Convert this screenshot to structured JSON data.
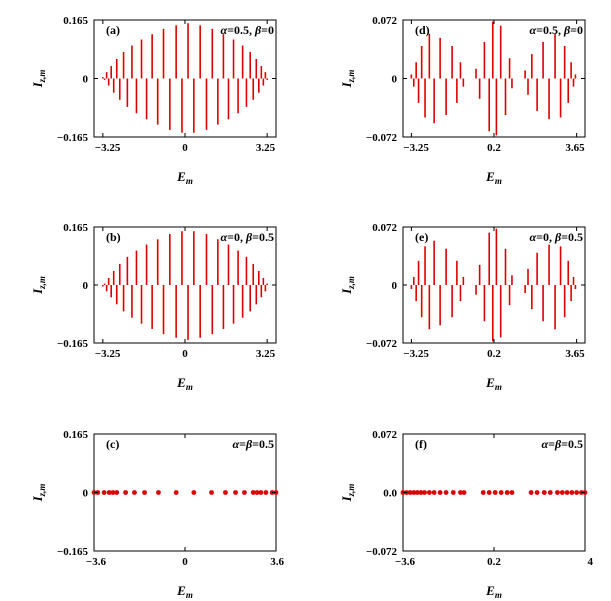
{
  "chart_data": [
    {
      "id": "a",
      "type": "bar",
      "panel_label": "(a)",
      "annotation": {
        "greek1": "α",
        "v1": "=0.5, ",
        "greek2": "β",
        "v2": "=0"
      },
      "xlabel": "E",
      "xlabel_sub": "m",
      "ylabel": "I",
      "ylabel_sub": "z,m",
      "xlim": [
        -3.6,
        3.6
      ],
      "ylim": [
        -0.165,
        0.165
      ],
      "xticks": [
        {
          "v": -3.25,
          "t": "−3.25"
        },
        {
          "v": 0,
          "t": "0"
        },
        {
          "v": 3.25,
          "t": "3.25"
        }
      ],
      "yticks": [
        {
          "v": 0.165,
          "t": "0.165"
        },
        {
          "v": 0,
          "t": "0"
        },
        {
          "v": -0.165,
          "t": "−0.165"
        }
      ],
      "points": [
        {
          "x": -3.25,
          "y": 0.004
        },
        {
          "x": -3.18,
          "y": -0.004
        },
        {
          "x": -3.1,
          "y": 0.018
        },
        {
          "x": -3.02,
          "y": -0.02
        },
        {
          "x": -2.92,
          "y": 0.035
        },
        {
          "x": -2.82,
          "y": -0.04
        },
        {
          "x": -2.7,
          "y": 0.055
        },
        {
          "x": -2.58,
          "y": -0.06
        },
        {
          "x": -2.43,
          "y": 0.075
        },
        {
          "x": -2.28,
          "y": -0.08
        },
        {
          "x": -2.1,
          "y": 0.093
        },
        {
          "x": -1.92,
          "y": -0.098
        },
        {
          "x": -1.72,
          "y": 0.11
        },
        {
          "x": -1.52,
          "y": -0.115
        },
        {
          "x": -1.3,
          "y": 0.125
        },
        {
          "x": -1.08,
          "y": -0.13
        },
        {
          "x": -0.85,
          "y": 0.14
        },
        {
          "x": -0.6,
          "y": -0.145
        },
        {
          "x": -0.35,
          "y": 0.15
        },
        {
          "x": -0.12,
          "y": -0.153
        },
        {
          "x": 0.12,
          "y": 0.156
        },
        {
          "x": 0.35,
          "y": -0.153
        },
        {
          "x": 0.6,
          "y": 0.15
        },
        {
          "x": 0.85,
          "y": -0.145
        },
        {
          "x": 1.08,
          "y": 0.14
        },
        {
          "x": 1.3,
          "y": -0.13
        },
        {
          "x": 1.52,
          "y": 0.125
        },
        {
          "x": 1.72,
          "y": -0.115
        },
        {
          "x": 1.92,
          "y": 0.11
        },
        {
          "x": 2.1,
          "y": -0.098
        },
        {
          "x": 2.28,
          "y": 0.093
        },
        {
          "x": 2.43,
          "y": -0.08
        },
        {
          "x": 2.58,
          "y": 0.075
        },
        {
          "x": 2.7,
          "y": -0.06
        },
        {
          "x": 2.82,
          "y": 0.055
        },
        {
          "x": 2.92,
          "y": -0.04
        },
        {
          "x": 3.02,
          "y": 0.035
        },
        {
          "x": 3.1,
          "y": -0.02
        },
        {
          "x": 3.18,
          "y": 0.018
        },
        {
          "x": 3.25,
          "y": -0.004
        }
      ]
    },
    {
      "id": "d",
      "type": "bar",
      "panel_label": "(d)",
      "annotation": {
        "greek1": "α",
        "v1": "=0.5, ",
        "greek2": "β",
        "v2": "=0"
      },
      "xlabel": "E",
      "xlabel_sub": "m",
      "ylabel": "I",
      "ylabel_sub": "z,m",
      "xlim": [
        -3.6,
        4.0
      ],
      "ylim": [
        -0.072,
        0.072
      ],
      "xticks": [
        {
          "v": -3.25,
          "t": "−3.25"
        },
        {
          "v": 0.2,
          "t": "0.2"
        },
        {
          "v": 3.65,
          "t": "3.65"
        }
      ],
      "yticks": [
        {
          "v": 0.072,
          "t": "0.072"
        },
        {
          "v": 0,
          "t": "0"
        },
        {
          "v": -0.072,
          "t": "−0.072"
        }
      ],
      "points": [
        {
          "x": -3.25,
          "y": 0.005
        },
        {
          "x": -3.15,
          "y": -0.01
        },
        {
          "x": -3.05,
          "y": 0.02
        },
        {
          "x": -2.95,
          "y": -0.03
        },
        {
          "x": -2.82,
          "y": 0.04
        },
        {
          "x": -2.68,
          "y": -0.048
        },
        {
          "x": -2.5,
          "y": 0.055
        },
        {
          "x": -2.3,
          "y": -0.055
        },
        {
          "x": -2.05,
          "y": 0.05
        },
        {
          "x": -1.8,
          "y": -0.045
        },
        {
          "x": -1.55,
          "y": 0.04
        },
        {
          "x": -1.35,
          "y": -0.03
        },
        {
          "x": -1.2,
          "y": 0.02
        },
        {
          "x": -1.08,
          "y": -0.01
        },
        {
          "x": -0.55,
          "y": 0.012
        },
        {
          "x": -0.4,
          "y": -0.025
        },
        {
          "x": -0.2,
          "y": 0.045
        },
        {
          "x": 0.0,
          "y": -0.065
        },
        {
          "x": 0.15,
          "y": 0.07
        },
        {
          "x": 0.3,
          "y": -0.07
        },
        {
          "x": 0.48,
          "y": 0.065
        },
        {
          "x": 0.68,
          "y": -0.045
        },
        {
          "x": 0.85,
          "y": 0.025
        },
        {
          "x": 0.95,
          "y": -0.012
        },
        {
          "x": 1.5,
          "y": 0.01
        },
        {
          "x": 1.62,
          "y": -0.02
        },
        {
          "x": 1.78,
          "y": 0.03
        },
        {
          "x": 2.0,
          "y": -0.04
        },
        {
          "x": 2.25,
          "y": 0.045
        },
        {
          "x": 2.5,
          "y": -0.05
        },
        {
          "x": 2.75,
          "y": 0.055
        },
        {
          "x": 2.98,
          "y": -0.048
        },
        {
          "x": 3.15,
          "y": 0.04
        },
        {
          "x": 3.3,
          "y": -0.03
        },
        {
          "x": 3.42,
          "y": 0.02
        },
        {
          "x": 3.52,
          "y": -0.01
        },
        {
          "x": 3.6,
          "y": 0.005
        }
      ]
    },
    {
      "id": "b",
      "type": "bar",
      "panel_label": "(b)",
      "annotation": {
        "greek1": "α",
        "v1": "=0, ",
        "greek2": "β",
        "v2": "=0.5"
      },
      "xlabel": "E",
      "xlabel_sub": "m",
      "ylabel": "I",
      "ylabel_sub": "z,m",
      "xlim": [
        -3.6,
        3.6
      ],
      "ylim": [
        -0.165,
        0.165
      ],
      "xticks": [
        {
          "v": -3.25,
          "t": "−3.25"
        },
        {
          "v": 0,
          "t": "0"
        },
        {
          "v": 3.25,
          "t": "3.25"
        }
      ],
      "yticks": [
        {
          "v": 0.165,
          "t": "0.165"
        },
        {
          "v": 0,
          "t": "0"
        },
        {
          "v": -0.165,
          "t": "−0.165"
        }
      ],
      "points": [
        {
          "x": -3.25,
          "y": -0.004
        },
        {
          "x": -3.18,
          "y": 0.004
        },
        {
          "x": -3.1,
          "y": -0.018
        },
        {
          "x": -3.02,
          "y": 0.02
        },
        {
          "x": -2.92,
          "y": -0.035
        },
        {
          "x": -2.82,
          "y": 0.04
        },
        {
          "x": -2.7,
          "y": -0.055
        },
        {
          "x": -2.58,
          "y": 0.06
        },
        {
          "x": -2.43,
          "y": -0.075
        },
        {
          "x": -2.28,
          "y": 0.08
        },
        {
          "x": -2.1,
          "y": -0.093
        },
        {
          "x": -1.92,
          "y": 0.098
        },
        {
          "x": -1.72,
          "y": -0.11
        },
        {
          "x": -1.52,
          "y": 0.115
        },
        {
          "x": -1.3,
          "y": -0.125
        },
        {
          "x": -1.08,
          "y": 0.13
        },
        {
          "x": -0.85,
          "y": -0.14
        },
        {
          "x": -0.6,
          "y": 0.145
        },
        {
          "x": -0.35,
          "y": -0.15
        },
        {
          "x": -0.12,
          "y": 0.153
        },
        {
          "x": 0.12,
          "y": -0.156
        },
        {
          "x": 0.35,
          "y": 0.153
        },
        {
          "x": 0.6,
          "y": -0.15
        },
        {
          "x": 0.85,
          "y": 0.145
        },
        {
          "x": 1.08,
          "y": -0.14
        },
        {
          "x": 1.3,
          "y": 0.13
        },
        {
          "x": 1.52,
          "y": -0.125
        },
        {
          "x": 1.72,
          "y": 0.115
        },
        {
          "x": 1.92,
          "y": -0.11
        },
        {
          "x": 2.1,
          "y": 0.098
        },
        {
          "x": 2.28,
          "y": -0.093
        },
        {
          "x": 2.43,
          "y": 0.08
        },
        {
          "x": 2.58,
          "y": -0.075
        },
        {
          "x": 2.7,
          "y": 0.06
        },
        {
          "x": 2.82,
          "y": -0.055
        },
        {
          "x": 2.92,
          "y": 0.04
        },
        {
          "x": 3.02,
          "y": -0.035
        },
        {
          "x": 3.1,
          "y": 0.02
        },
        {
          "x": 3.18,
          "y": -0.018
        },
        {
          "x": 3.25,
          "y": 0.004
        }
      ]
    },
    {
      "id": "e",
      "type": "bar",
      "panel_label": "(e)",
      "annotation": {
        "greek1": "α",
        "v1": "=0, ",
        "greek2": "β",
        "v2": "=0.5"
      },
      "xlabel": "E",
      "xlabel_sub": "m",
      "ylabel": "I",
      "ylabel_sub": "z,m",
      "xlim": [
        -3.6,
        4.0
      ],
      "ylim": [
        -0.072,
        0.072
      ],
      "xticks": [
        {
          "v": -3.25,
          "t": "−3.25"
        },
        {
          "v": 0.2,
          "t": "0.2"
        },
        {
          "v": 3.65,
          "t": "3.65"
        }
      ],
      "yticks": [
        {
          "v": 0.072,
          "t": "0.072"
        },
        {
          "v": 0,
          "t": "0"
        },
        {
          "v": -0.072,
          "t": "−0.072"
        }
      ],
      "points": [
        {
          "x": -3.25,
          "y": -0.005
        },
        {
          "x": -3.15,
          "y": 0.01
        },
        {
          "x": -3.05,
          "y": -0.02
        },
        {
          "x": -2.95,
          "y": 0.03
        },
        {
          "x": -2.82,
          "y": -0.04
        },
        {
          "x": -2.68,
          "y": 0.048
        },
        {
          "x": -2.5,
          "y": -0.055
        },
        {
          "x": -2.3,
          "y": 0.055
        },
        {
          "x": -2.05,
          "y": -0.05
        },
        {
          "x": -1.8,
          "y": 0.045
        },
        {
          "x": -1.55,
          "y": -0.04
        },
        {
          "x": -1.35,
          "y": 0.03
        },
        {
          "x": -1.2,
          "y": -0.02
        },
        {
          "x": -1.08,
          "y": 0.01
        },
        {
          "x": -0.55,
          "y": -0.012
        },
        {
          "x": -0.4,
          "y": 0.025
        },
        {
          "x": -0.2,
          "y": -0.045
        },
        {
          "x": 0.0,
          "y": 0.065
        },
        {
          "x": 0.15,
          "y": -0.07
        },
        {
          "x": 0.3,
          "y": 0.07
        },
        {
          "x": 0.48,
          "y": -0.065
        },
        {
          "x": 0.68,
          "y": 0.045
        },
        {
          "x": 0.85,
          "y": -0.025
        },
        {
          "x": 0.95,
          "y": 0.012
        },
        {
          "x": 1.5,
          "y": -0.01
        },
        {
          "x": 1.62,
          "y": 0.02
        },
        {
          "x": 1.78,
          "y": -0.03
        },
        {
          "x": 2.0,
          "y": 0.04
        },
        {
          "x": 2.25,
          "y": -0.045
        },
        {
          "x": 2.5,
          "y": 0.05
        },
        {
          "x": 2.75,
          "y": -0.055
        },
        {
          "x": 2.98,
          "y": 0.048
        },
        {
          "x": 3.15,
          "y": -0.04
        },
        {
          "x": 3.3,
          "y": 0.03
        },
        {
          "x": 3.42,
          "y": -0.02
        },
        {
          "x": 3.52,
          "y": 0.01
        },
        {
          "x": 3.6,
          "y": -0.005
        }
      ]
    },
    {
      "id": "c",
      "type": "scatter",
      "panel_label": "(c)",
      "annotation": {
        "greek1": "α",
        "v1": "=",
        "greek2": "β",
        "v2": "=0.5"
      },
      "xlabel": "E",
      "xlabel_sub": "m",
      "ylabel": "I",
      "ylabel_sub": "z,m",
      "xlim": [
        -3.6,
        3.6
      ],
      "ylim": [
        -0.165,
        0.165
      ],
      "xticks": [
        {
          "v": -3.6,
          "t": "−3.6"
        },
        {
          "v": 0,
          "t": "0"
        },
        {
          "v": 3.6,
          "t": "3.6"
        }
      ],
      "yticks": [
        {
          "v": 0.165,
          "t": "0.165"
        },
        {
          "v": 0,
          "t": "0"
        },
        {
          "v": -0.165,
          "t": "−0.165"
        }
      ],
      "points": [
        {
          "x": -3.6,
          "y": 0
        },
        {
          "x": -3.45,
          "y": 0
        },
        {
          "x": -3.2,
          "y": 0
        },
        {
          "x": -3.0,
          "y": 0
        },
        {
          "x": -2.85,
          "y": 0
        },
        {
          "x": -2.7,
          "y": 0
        },
        {
          "x": -2.35,
          "y": 0
        },
        {
          "x": -2.0,
          "y": 0
        },
        {
          "x": -1.6,
          "y": 0
        },
        {
          "x": -1.05,
          "y": 0
        },
        {
          "x": -0.35,
          "y": 0
        },
        {
          "x": 0.35,
          "y": 0
        },
        {
          "x": 1.05,
          "y": 0
        },
        {
          "x": 1.6,
          "y": 0
        },
        {
          "x": 2.0,
          "y": 0
        },
        {
          "x": 2.35,
          "y": 0
        },
        {
          "x": 2.7,
          "y": 0
        },
        {
          "x": 2.85,
          "y": 0
        },
        {
          "x": 3.0,
          "y": 0
        },
        {
          "x": 3.2,
          "y": 0
        },
        {
          "x": 3.45,
          "y": 0
        },
        {
          "x": 3.6,
          "y": 0
        }
      ]
    },
    {
      "id": "f",
      "type": "scatter",
      "panel_label": "(f)",
      "annotation": {
        "greek1": "α",
        "v1": "=",
        "greek2": "β",
        "v2": "=0.5"
      },
      "xlabel": "E",
      "xlabel_sub": "m",
      "ylabel": "I",
      "ylabel_sub": "z,m",
      "xlim": [
        -3.6,
        4.0
      ],
      "ylim": [
        -0.072,
        0.072
      ],
      "xticks": [
        {
          "v": -3.6,
          "t": "−3.6"
        },
        {
          "v": 0.2,
          "t": "0.2"
        },
        {
          "v": 4.0,
          "t": "4"
        }
      ],
      "yticks": [
        {
          "v": 0.072,
          "t": "0.072"
        },
        {
          "v": 0.0,
          "t": "0.0"
        },
        {
          "v": -0.072,
          "t": "−0.072"
        }
      ],
      "points": [
        {
          "x": -3.6,
          "y": 0
        },
        {
          "x": -3.45,
          "y": 0
        },
        {
          "x": -3.3,
          "y": 0
        },
        {
          "x": -3.15,
          "y": 0
        },
        {
          "x": -3.0,
          "y": 0
        },
        {
          "x": -2.85,
          "y": 0
        },
        {
          "x": -2.7,
          "y": 0
        },
        {
          "x": -2.5,
          "y": 0
        },
        {
          "x": -2.3,
          "y": 0
        },
        {
          "x": -2.05,
          "y": 0
        },
        {
          "x": -1.8,
          "y": 0
        },
        {
          "x": -1.5,
          "y": 0
        },
        {
          "x": -1.2,
          "y": 0
        },
        {
          "x": -1.05,
          "y": 0
        },
        {
          "x": -0.25,
          "y": 0
        },
        {
          "x": 0.0,
          "y": 0
        },
        {
          "x": 0.25,
          "y": 0
        },
        {
          "x": 0.5,
          "y": 0
        },
        {
          "x": 0.75,
          "y": 0
        },
        {
          "x": 0.95,
          "y": 0
        },
        {
          "x": 1.75,
          "y": 0
        },
        {
          "x": 2.0,
          "y": 0
        },
        {
          "x": 2.3,
          "y": 0
        },
        {
          "x": 2.55,
          "y": 0
        },
        {
          "x": 2.85,
          "y": 0
        },
        {
          "x": 3.05,
          "y": 0
        },
        {
          "x": 3.25,
          "y": 0
        },
        {
          "x": 3.45,
          "y": 0
        },
        {
          "x": 3.65,
          "y": 0
        },
        {
          "x": 3.85,
          "y": 0
        },
        {
          "x": 4.0,
          "y": 0
        }
      ]
    }
  ],
  "colors": {
    "series": "#dd0000",
    "axes": "#000000"
  }
}
